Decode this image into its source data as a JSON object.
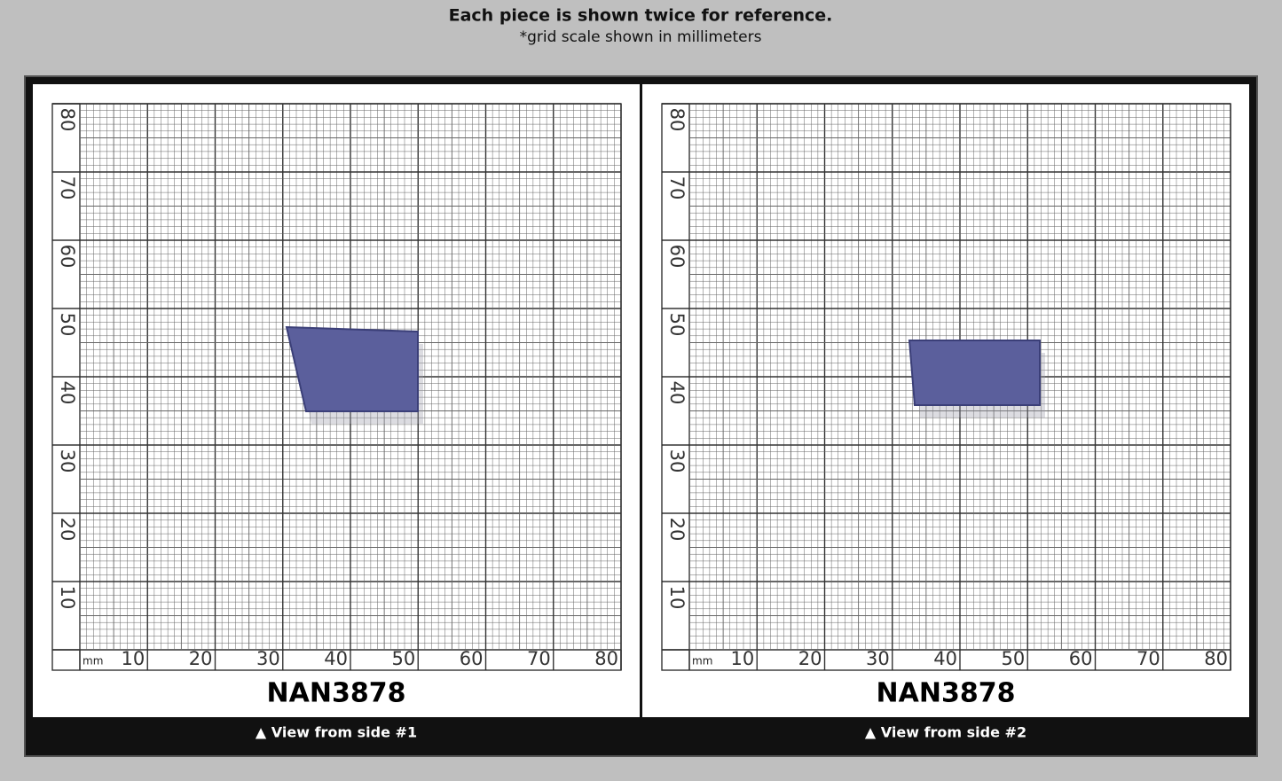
{
  "header": {
    "title": "Each piece is shown twice for reference.",
    "subtitle": "*grid scale shown in millimeters"
  },
  "panels": [
    {
      "id": "NAN3878",
      "caption": "▲ View from side #1",
      "unit": "mm",
      "x_labels": [
        10,
        20,
        30,
        40,
        50,
        60,
        70,
        80
      ],
      "y_labels": [
        10,
        20,
        30,
        40,
        50,
        60,
        70,
        80
      ]
    },
    {
      "id": "NAN3878",
      "caption": "▲ View from side #2",
      "unit": "mm",
      "x_labels": [
        10,
        20,
        30,
        40,
        50,
        60,
        70,
        80
      ],
      "y_labels": [
        10,
        20,
        30,
        40,
        50,
        60,
        70,
        80
      ]
    }
  ]
}
